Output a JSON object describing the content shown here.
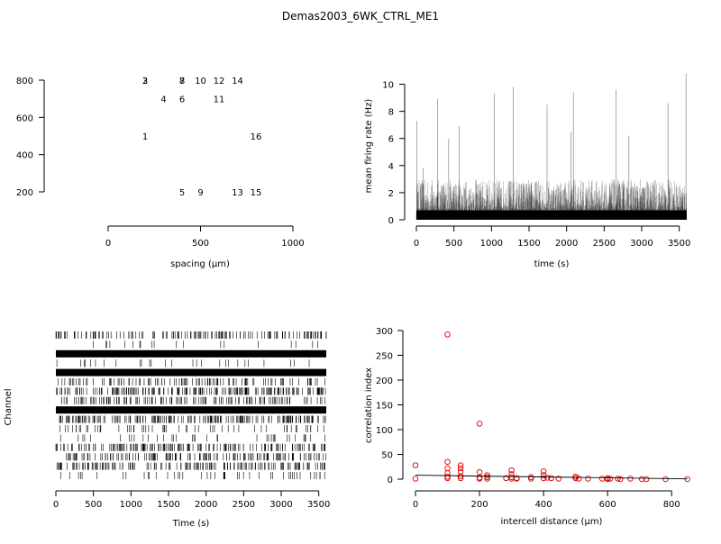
{
  "title": "Demas2003_6WK_CTRL_ME1",
  "colors": {
    "ink": "#000000",
    "points": "#dd0000",
    "background": "#ffffff"
  },
  "chart_data": [
    {
      "id": "layout",
      "type": "scatter",
      "xlabel": "spacing (µm)",
      "ylabel": "",
      "xlim": [
        0,
        1000
      ],
      "ylim": [
        200,
        800
      ],
      "xticks": [
        0,
        500,
        1000
      ],
      "yticks": [
        200,
        400,
        600,
        800
      ],
      "points": [
        {
          "label": "2",
          "x": 200,
          "y": 800
        },
        {
          "label": "3",
          "x": 200,
          "y": 800
        },
        {
          "label": "7",
          "x": 400,
          "y": 800
        },
        {
          "label": "8",
          "x": 400,
          "y": 800
        },
        {
          "label": "10",
          "x": 500,
          "y": 800
        },
        {
          "label": "12",
          "x": 600,
          "y": 800
        },
        {
          "label": "14",
          "x": 700,
          "y": 800
        },
        {
          "label": "4",
          "x": 300,
          "y": 700
        },
        {
          "label": "6",
          "x": 400,
          "y": 700
        },
        {
          "label": "11",
          "x": 600,
          "y": 700
        },
        {
          "label": "1",
          "x": 200,
          "y": 500
        },
        {
          "label": "16",
          "x": 800,
          "y": 500
        },
        {
          "label": "5",
          "x": 400,
          "y": 200
        },
        {
          "label": "9",
          "x": 500,
          "y": 200
        },
        {
          "label": "13",
          "x": 700,
          "y": 200
        },
        {
          "label": "15",
          "x": 800,
          "y": 200
        }
      ]
    },
    {
      "id": "rate",
      "type": "line",
      "xlabel": "time (s)",
      "ylabel": "mean firing rate (Hz)",
      "xlim": [
        0,
        3600
      ],
      "ylim": [
        0,
        10.5
      ],
      "xticks": [
        0,
        500,
        1000,
        1500,
        2000,
        2500,
        3000,
        3500
      ],
      "yticks": [
        0,
        2,
        4,
        6,
        8,
        10
      ],
      "peaks": [
        {
          "x": 5,
          "y": 7.3
        },
        {
          "x": 90,
          "y": 3.8
        },
        {
          "x": 280,
          "y": 8.9
        },
        {
          "x": 430,
          "y": 6.0
        },
        {
          "x": 570,
          "y": 6.9
        },
        {
          "x": 1040,
          "y": 9.3
        },
        {
          "x": 1290,
          "y": 9.8
        },
        {
          "x": 1740,
          "y": 8.5
        },
        {
          "x": 2090,
          "y": 9.4
        },
        {
          "x": 2060,
          "y": 6.5
        },
        {
          "x": 2660,
          "y": 9.6
        },
        {
          "x": 2830,
          "y": 6.2
        },
        {
          "x": 3350,
          "y": 8.6
        },
        {
          "x": 3590,
          "y": 10.8
        }
      ]
    },
    {
      "id": "raster",
      "type": "raster",
      "xlabel": "Time (s)",
      "ylabel": "Channel",
      "xlim": [
        0,
        3600
      ],
      "xticks": [
        0,
        500,
        1000,
        1500,
        2000,
        2500,
        3000,
        3500
      ],
      "channels": [
        {
          "density": 0.55,
          "solid": false
        },
        {
          "density": 0.05,
          "solid": false
        },
        {
          "density": 1.0,
          "solid": true
        },
        {
          "density": 0.08,
          "solid": false
        },
        {
          "density": 1.0,
          "solid": true
        },
        {
          "density": 0.4,
          "solid": false
        },
        {
          "density": 0.75,
          "solid": false
        },
        {
          "density": 0.5,
          "solid": false
        },
        {
          "density": 1.0,
          "solid": true
        },
        {
          "density": 0.7,
          "solid": false
        },
        {
          "density": 0.2,
          "solid": false
        },
        {
          "density": 0.12,
          "solid": false
        },
        {
          "density": 0.6,
          "solid": false
        },
        {
          "density": 0.55,
          "solid": false
        },
        {
          "density": 0.6,
          "solid": false
        },
        {
          "density": 0.15,
          "solid": false
        }
      ]
    },
    {
      "id": "correlation",
      "type": "scatter",
      "xlabel": "intercell distance (µm)",
      "ylabel": "correlation index",
      "xlim": [
        0,
        850
      ],
      "ylim": [
        0,
        300
      ],
      "xticks": [
        0,
        200,
        400,
        600,
        800
      ],
      "yticks": [
        0,
        50,
        100,
        150,
        200,
        250,
        300
      ],
      "points": [
        [
          0,
          28
        ],
        [
          0,
          1
        ],
        [
          100,
          292
        ],
        [
          100,
          35
        ],
        [
          100,
          22
        ],
        [
          100,
          12
        ],
        [
          100,
          5
        ],
        [
          100,
          2
        ],
        [
          141,
          28
        ],
        [
          141,
          22
        ],
        [
          141,
          15
        ],
        [
          141,
          6
        ],
        [
          141,
          2
        ],
        [
          200,
          112
        ],
        [
          200,
          14
        ],
        [
          200,
          3
        ],
        [
          200,
          1
        ],
        [
          224,
          8
        ],
        [
          224,
          4
        ],
        [
          224,
          1
        ],
        [
          283,
          2
        ],
        [
          300,
          18
        ],
        [
          300,
          10
        ],
        [
          300,
          4
        ],
        [
          300,
          1
        ],
        [
          316,
          2
        ],
        [
          316,
          1
        ],
        [
          361,
          4
        ],
        [
          361,
          1
        ],
        [
          400,
          16
        ],
        [
          400,
          8
        ],
        [
          400,
          2
        ],
        [
          412,
          3
        ],
        [
          424,
          2
        ],
        [
          447,
          1
        ],
        [
          500,
          5
        ],
        [
          500,
          2
        ],
        [
          510,
          1
        ],
        [
          539,
          1
        ],
        [
          583,
          1
        ],
        [
          600,
          2
        ],
        [
          600,
          0
        ],
        [
          608,
          1
        ],
        [
          632,
          1
        ],
        [
          640,
          0
        ],
        [
          671,
          1
        ],
        [
          707,
          0
        ],
        [
          721,
          0
        ],
        [
          781,
          0
        ],
        [
          849,
          0
        ]
      ],
      "trend": [
        [
          0,
          8
        ],
        [
          850,
          0.5
        ]
      ]
    }
  ]
}
